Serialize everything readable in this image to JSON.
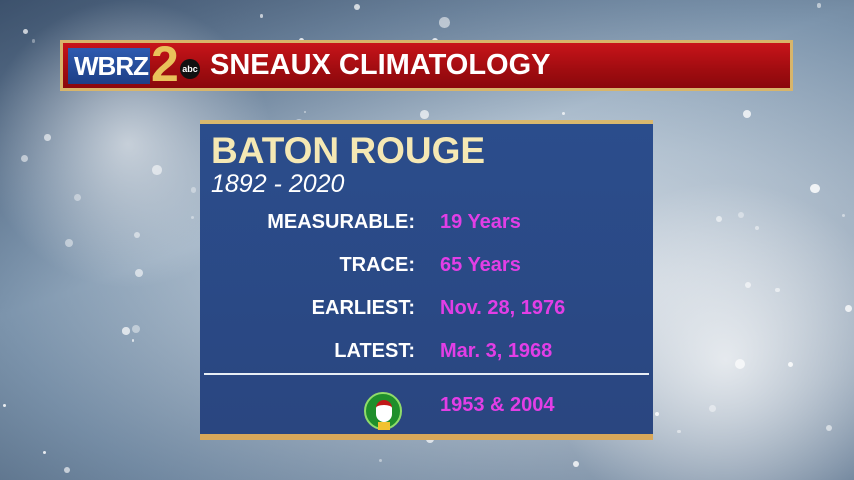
{
  "banner": {
    "logo_text": "WBRZ",
    "logo_number": "2",
    "network": "abc",
    "title": "SNEAUX CLIMATOLOGY"
  },
  "panel": {
    "title": "BATON ROUGE",
    "subtitle": "1892 - 2020",
    "rows": [
      {
        "label": "MEASURABLE:",
        "value": "19 Years"
      },
      {
        "label": "TRACE:",
        "value": "65 Years"
      },
      {
        "label": "EARLIEST:",
        "value": "Nov. 28, 1976"
      },
      {
        "label": "LATEST:",
        "value": "Mar. 3, 1968"
      }
    ],
    "christmas": {
      "icon": "santa-wreath-icon",
      "value": "1953 & 2004"
    }
  },
  "colors": {
    "banner_red": "#b01015",
    "panel_blue": "#2b4a85",
    "value_magenta": "#e23ee6",
    "title_cream": "#f5e8b4",
    "gold": "#d9b86e"
  }
}
